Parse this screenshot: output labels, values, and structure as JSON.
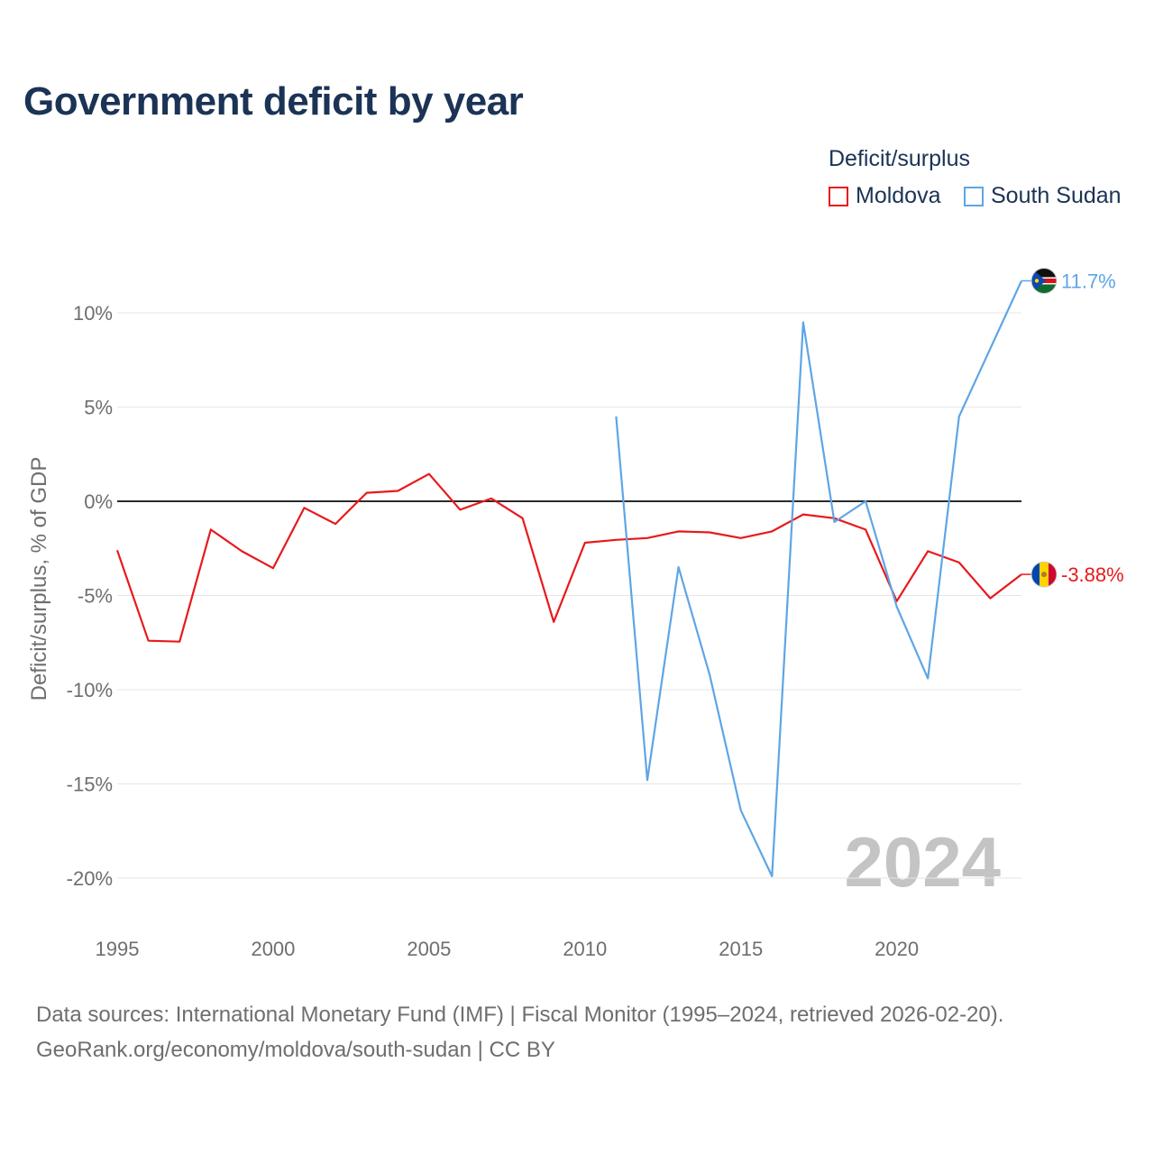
{
  "title": "Government deficit by year",
  "legend": {
    "title": "Deficit/surplus",
    "items": [
      {
        "label": "Moldova",
        "color": "#e8191c"
      },
      {
        "label": "South Sudan",
        "color": "#5ea5e6"
      }
    ]
  },
  "year_watermark": "2024",
  "source": {
    "line1": "Data sources: International Monetary Fund (IMF) | Fiscal Monitor (1995–2024, retrieved 2026-02-20).",
    "line2": "GeoRank.org/economy/moldova/south-sudan | CC BY"
  },
  "chart_data": {
    "type": "line",
    "title": "Government deficit by year",
    "xlabel": "",
    "ylabel": "Deficit/surplus, % of GDP",
    "xlim": [
      1995,
      2024
    ],
    "ylim": [
      -20,
      10
    ],
    "x_ticks": [
      1995,
      2000,
      2005,
      2010,
      2015,
      2020
    ],
    "x_tick_labels": [
      "1995",
      "2000",
      "2005",
      "2010",
      "2015",
      "2020"
    ],
    "y_ticks": [
      10,
      5,
      0,
      -5,
      -10,
      -15,
      -20
    ],
    "y_tick_labels": [
      "10%",
      "5%",
      "0%",
      "-5%",
      "-10%",
      "-15%",
      "-20%"
    ],
    "grid": true,
    "legend_position": "top-right",
    "series": [
      {
        "name": "Moldova",
        "color": "#e8191c",
        "end_label": "-3.88%",
        "x": [
          1995,
          1996,
          1997,
          1998,
          1999,
          2000,
          2001,
          2002,
          2003,
          2004,
          2005,
          2006,
          2007,
          2008,
          2009,
          2010,
          2011,
          2012,
          2013,
          2014,
          2015,
          2016,
          2017,
          2018,
          2019,
          2020,
          2021,
          2022,
          2023,
          2024
        ],
        "values": [
          -2.6,
          -7.4,
          -7.45,
          -1.5,
          -2.65,
          -3.55,
          -0.35,
          -1.2,
          0.45,
          0.55,
          1.45,
          -0.45,
          0.15,
          -0.9,
          -6.4,
          -2.2,
          -2.05,
          -1.95,
          -1.6,
          -1.65,
          -1.95,
          -1.6,
          -0.7,
          -0.9,
          -1.5,
          -5.3,
          -2.65,
          -3.25,
          -5.15,
          -3.88
        ]
      },
      {
        "name": "South Sudan",
        "color": "#5ea5e6",
        "end_label": "11.7%",
        "x": [
          2011,
          2012,
          2013,
          2014,
          2015,
          2016,
          2017,
          2018,
          2019,
          2020,
          2021,
          2022,
          2023,
          2024
        ],
        "values": [
          4.5,
          -14.8,
          -3.5,
          -9.2,
          -16.4,
          -19.9,
          9.5,
          -1.1,
          0.0,
          -5.6,
          -9.4,
          4.5,
          8.1,
          11.7
        ]
      }
    ]
  }
}
